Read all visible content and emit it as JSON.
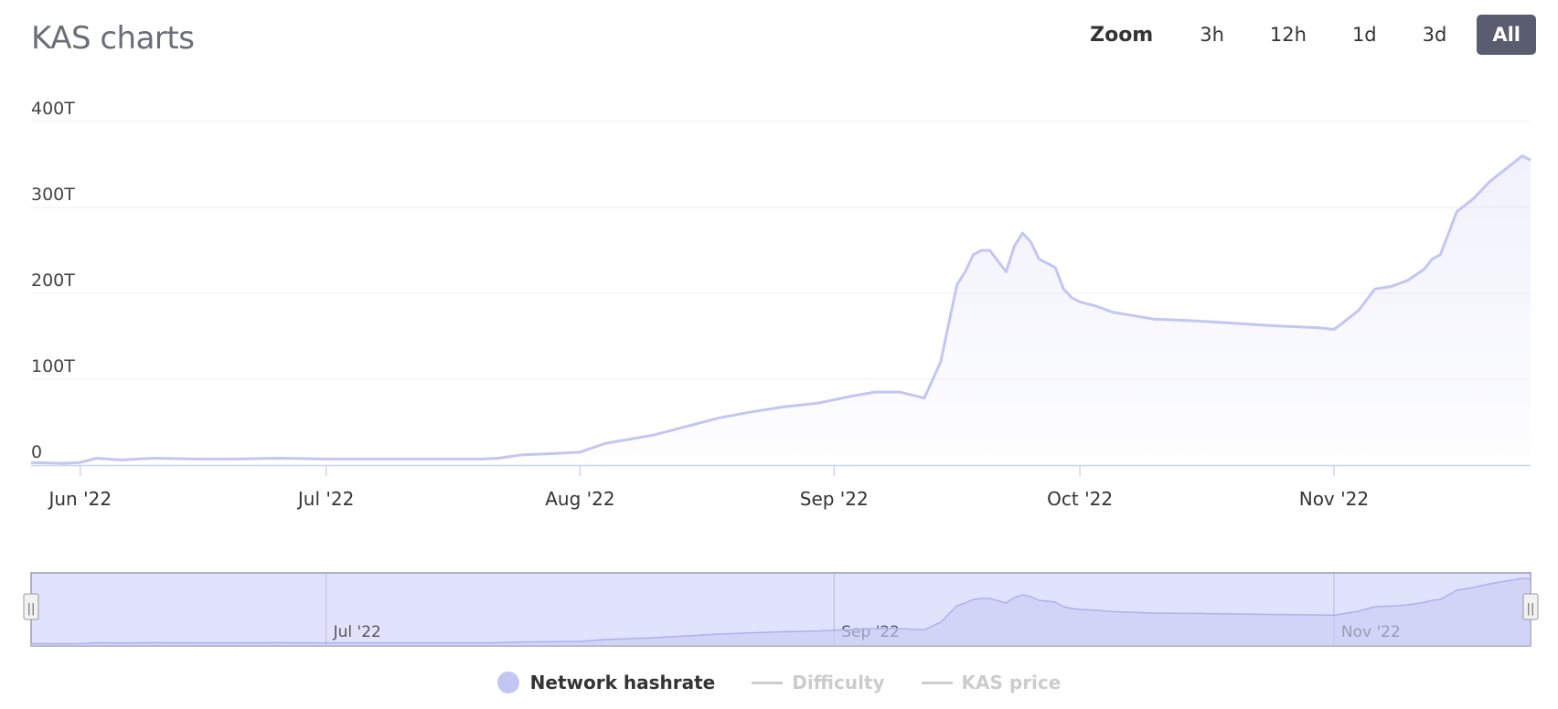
{
  "title": "KAS charts",
  "zoom": {
    "label": "Zoom",
    "buttons": [
      {
        "label": "3h",
        "active": false
      },
      {
        "label": "12h",
        "active": false
      },
      {
        "label": "1d",
        "active": false
      },
      {
        "label": "3d",
        "active": false
      },
      {
        "label": "All",
        "active": true
      }
    ]
  },
  "colors": {
    "series": "#c3c6f2",
    "active_button": "#5a5d70",
    "navigator_mask": "#dde0fb",
    "legend_hidden": "#cccccc"
  },
  "chart_data": {
    "type": "area",
    "title": "",
    "xlabel": "",
    "ylabel": "",
    "ylim": [
      0,
      400
    ],
    "y_unit": "T",
    "yticks": [
      "0",
      "100T",
      "200T",
      "300T",
      "400T"
    ],
    "xticks": [
      {
        "date": "2022-06-01",
        "label": "Jun '22"
      },
      {
        "date": "2022-07-01",
        "label": "Jul '22"
      },
      {
        "date": "2022-08-01",
        "label": "Aug '22"
      },
      {
        "date": "2022-09-01",
        "label": "Sep '22"
      },
      {
        "date": "2022-10-01",
        "label": "Oct '22"
      },
      {
        "date": "2022-11-01",
        "label": "Nov '22"
      }
    ],
    "xlim": [
      "2022-05-26",
      "2022-11-25"
    ],
    "grid": true,
    "legend_position": "bottom-center",
    "series": [
      {
        "name": "Network hashrate",
        "visible": true,
        "x": [
          "2022-05-26",
          "2022-05-30",
          "2022-06-01",
          "2022-06-03",
          "2022-06-06",
          "2022-06-10",
          "2022-06-15",
          "2022-06-20",
          "2022-06-25",
          "2022-07-01",
          "2022-07-10",
          "2022-07-20",
          "2022-07-22",
          "2022-07-25",
          "2022-07-28",
          "2022-08-01",
          "2022-08-04",
          "2022-08-07",
          "2022-08-10",
          "2022-08-14",
          "2022-08-18",
          "2022-08-22",
          "2022-08-26",
          "2022-08-30",
          "2022-09-03",
          "2022-09-06",
          "2022-09-09",
          "2022-09-12",
          "2022-09-14",
          "2022-09-15",
          "2022-09-16",
          "2022-09-17",
          "2022-09-18",
          "2022-09-19",
          "2022-09-20",
          "2022-09-22",
          "2022-09-23",
          "2022-09-24",
          "2022-09-25",
          "2022-09-26",
          "2022-09-27",
          "2022-09-28",
          "2022-09-29",
          "2022-09-30",
          "2022-10-01",
          "2022-10-03",
          "2022-10-05",
          "2022-10-10",
          "2022-10-15",
          "2022-10-20",
          "2022-10-25",
          "2022-10-30",
          "2022-11-01",
          "2022-11-02",
          "2022-11-04",
          "2022-11-06",
          "2022-11-08",
          "2022-11-10",
          "2022-11-12",
          "2022-11-13",
          "2022-11-14",
          "2022-11-16",
          "2022-11-18",
          "2022-11-20",
          "2022-11-22",
          "2022-11-24",
          "2022-11-25"
        ],
        "values": [
          3,
          2,
          3,
          8,
          6,
          8,
          7,
          7,
          8,
          7,
          7,
          7,
          8,
          12,
          13,
          15,
          25,
          30,
          35,
          45,
          55,
          62,
          68,
          72,
          80,
          85,
          85,
          78,
          120,
          165,
          210,
          225,
          245,
          250,
          250,
          225,
          255,
          270,
          260,
          240,
          235,
          230,
          205,
          195,
          190,
          185,
          178,
          170,
          168,
          165,
          162,
          160,
          158,
          165,
          180,
          205,
          208,
          215,
          228,
          240,
          245,
          295,
          310,
          330,
          345,
          360,
          355
        ]
      },
      {
        "name": "Difficulty",
        "visible": false
      },
      {
        "name": "KAS price",
        "visible": false
      }
    ]
  },
  "navigator": {
    "xticks": [
      {
        "date": "2022-07-01",
        "label": "Jul '22"
      },
      {
        "date": "2022-09-01",
        "label": "Sep '22"
      },
      {
        "date": "2022-11-01",
        "label": "Nov '22"
      }
    ],
    "handle_glyph": "||"
  },
  "legend": [
    {
      "label": "Network hashrate",
      "symbol": "dot",
      "visible": true
    },
    {
      "label": "Difficulty",
      "symbol": "line",
      "visible": false
    },
    {
      "label": "KAS price",
      "symbol": "line",
      "visible": false
    }
  ]
}
